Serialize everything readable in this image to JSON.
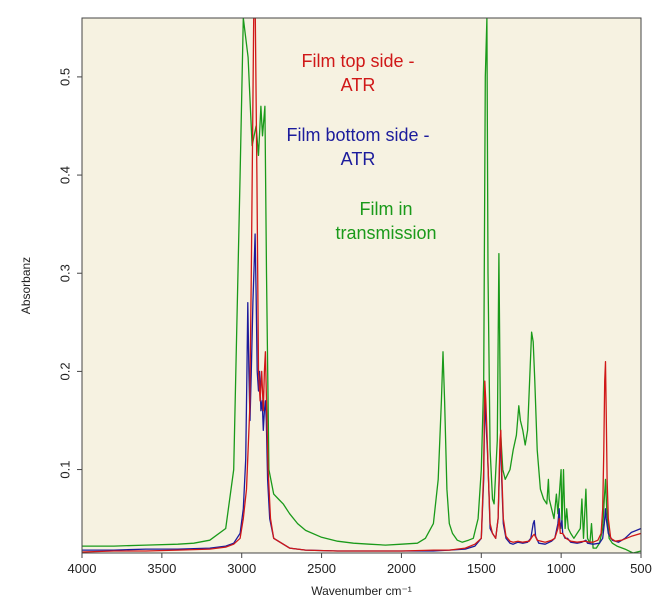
{
  "chart_data": {
    "type": "line",
    "title": "",
    "xlabel": "Wavenumber cm⁻¹",
    "ylabel": "Absorbanz",
    "xlim": [
      4000,
      500
    ],
    "ylim": [
      0.015,
      0.56
    ],
    "x_reversed": true,
    "grid": false,
    "x_ticks": [
      {
        "value": 4000,
        "label": "4000"
      },
      {
        "value": 3500,
        "label": "3500"
      },
      {
        "value": 3000,
        "label": "3000"
      },
      {
        "value": 2500,
        "label": "2500"
      },
      {
        "value": 2000,
        "label": "2000"
      },
      {
        "value": 1500,
        "label": "1500"
      },
      {
        "value": 1000,
        "label": "1000"
      },
      {
        "value": 500,
        "label": "500"
      }
    ],
    "y_ticks": [
      {
        "value": 0.1,
        "label": "0.1"
      },
      {
        "value": 0.2,
        "label": "0.2"
      },
      {
        "value": 0.3,
        "label": "0.3"
      },
      {
        "value": 0.4,
        "label": "0.4"
      },
      {
        "value": 0.5,
        "label": "0.5"
      }
    ],
    "plot_background": "#f6f2e1",
    "legend_position": "top-center",
    "series": [
      {
        "name": "Film in transmission",
        "legend_lines": [
          "Film in",
          "transmission"
        ],
        "color": "#1a9a1a",
        "points": [
          [
            4000,
            0.022
          ],
          [
            3800,
            0.022
          ],
          [
            3600,
            0.023
          ],
          [
            3400,
            0.024
          ],
          [
            3300,
            0.025
          ],
          [
            3200,
            0.028
          ],
          [
            3100,
            0.04
          ],
          [
            3050,
            0.1
          ],
          [
            3010,
            0.4
          ],
          [
            2990,
            0.56
          ],
          [
            2960,
            0.52
          ],
          [
            2935,
            0.43
          ],
          [
            2910,
            0.45
          ],
          [
            2895,
            0.42
          ],
          [
            2880,
            0.47
          ],
          [
            2870,
            0.44
          ],
          [
            2855,
            0.47
          ],
          [
            2845,
            0.3
          ],
          [
            2830,
            0.1
          ],
          [
            2800,
            0.075
          ],
          [
            2770,
            0.07
          ],
          [
            2740,
            0.065
          ],
          [
            2700,
            0.055
          ],
          [
            2650,
            0.045
          ],
          [
            2600,
            0.038
          ],
          [
            2500,
            0.031
          ],
          [
            2400,
            0.027
          ],
          [
            2300,
            0.025
          ],
          [
            2200,
            0.024
          ],
          [
            2100,
            0.023
          ],
          [
            2000,
            0.024
          ],
          [
            1900,
            0.025
          ],
          [
            1850,
            0.03
          ],
          [
            1800,
            0.045
          ],
          [
            1770,
            0.09
          ],
          [
            1750,
            0.17
          ],
          [
            1740,
            0.22
          ],
          [
            1730,
            0.17
          ],
          [
            1715,
            0.08
          ],
          [
            1700,
            0.045
          ],
          [
            1680,
            0.035
          ],
          [
            1650,
            0.028
          ],
          [
            1620,
            0.026
          ],
          [
            1580,
            0.028
          ],
          [
            1550,
            0.03
          ],
          [
            1520,
            0.05
          ],
          [
            1500,
            0.1
          ],
          [
            1485,
            0.19
          ],
          [
            1475,
            0.5
          ],
          [
            1465,
            0.56
          ],
          [
            1458,
            0.3
          ],
          [
            1445,
            0.12
          ],
          [
            1430,
            0.07
          ],
          [
            1420,
            0.065
          ],
          [
            1400,
            0.13
          ],
          [
            1390,
            0.32
          ],
          [
            1380,
            0.14
          ],
          [
            1365,
            0.1
          ],
          [
            1350,
            0.09
          ],
          [
            1320,
            0.1
          ],
          [
            1300,
            0.12
          ],
          [
            1280,
            0.135
          ],
          [
            1265,
            0.165
          ],
          [
            1255,
            0.15
          ],
          [
            1240,
            0.14
          ],
          [
            1225,
            0.125
          ],
          [
            1210,
            0.14
          ],
          [
            1195,
            0.2
          ],
          [
            1185,
            0.24
          ],
          [
            1175,
            0.23
          ],
          [
            1165,
            0.19
          ],
          [
            1150,
            0.12
          ],
          [
            1130,
            0.08
          ],
          [
            1110,
            0.07
          ],
          [
            1090,
            0.065
          ],
          [
            1080,
            0.09
          ],
          [
            1075,
            0.07
          ],
          [
            1060,
            0.06
          ],
          [
            1045,
            0.05
          ],
          [
            1030,
            0.075
          ],
          [
            1020,
            0.055
          ],
          [
            1000,
            0.1
          ],
          [
            995,
            0.04
          ],
          [
            985,
            0.1
          ],
          [
            975,
            0.04
          ],
          [
            965,
            0.06
          ],
          [
            955,
            0.04
          ],
          [
            940,
            0.035
          ],
          [
            920,
            0.03
          ],
          [
            900,
            0.035
          ],
          [
            880,
            0.04
          ],
          [
            870,
            0.07
          ],
          [
            860,
            0.03
          ],
          [
            845,
            0.08
          ],
          [
            835,
            0.03
          ],
          [
            820,
            0.025
          ],
          [
            810,
            0.045
          ],
          [
            800,
            0.02
          ],
          [
            780,
            0.02
          ],
          [
            760,
            0.025
          ],
          [
            740,
            0.04
          ],
          [
            730,
            0.07
          ],
          [
            722,
            0.09
          ],
          [
            715,
            0.06
          ],
          [
            700,
            0.03
          ],
          [
            680,
            0.025
          ],
          [
            650,
            0.022
          ],
          [
            600,
            0.019
          ],
          [
            550,
            0.015
          ],
          [
            500,
            0.017
          ]
        ]
      },
      {
        "name": "Film bottom side - ATR",
        "legend_lines": [
          "Film bottom side -",
          "ATR"
        ],
        "color": "#1c1c9c",
        "points": [
          [
            4000,
            0.018
          ],
          [
            3800,
            0.018
          ],
          [
            3600,
            0.019
          ],
          [
            3400,
            0.019
          ],
          [
            3200,
            0.02
          ],
          [
            3100,
            0.022
          ],
          [
            3050,
            0.025
          ],
          [
            3010,
            0.035
          ],
          [
            2990,
            0.06
          ],
          [
            2975,
            0.11
          ],
          [
            2968,
            0.19
          ],
          [
            2962,
            0.27
          ],
          [
            2955,
            0.2
          ],
          [
            2948,
            0.15
          ],
          [
            2940,
            0.2
          ],
          [
            2930,
            0.27
          ],
          [
            2922,
            0.31
          ],
          [
            2916,
            0.34
          ],
          [
            2910,
            0.28
          ],
          [
            2903,
            0.2
          ],
          [
            2895,
            0.18
          ],
          [
            2888,
            0.2
          ],
          [
            2880,
            0.16
          ],
          [
            2872,
            0.17
          ],
          [
            2865,
            0.14
          ],
          [
            2858,
            0.16
          ],
          [
            2852,
            0.17
          ],
          [
            2846,
            0.15
          ],
          [
            2838,
            0.09
          ],
          [
            2825,
            0.05
          ],
          [
            2800,
            0.03
          ],
          [
            2700,
            0.02
          ],
          [
            2600,
            0.018
          ],
          [
            2400,
            0.017
          ],
          [
            2200,
            0.017
          ],
          [
            2000,
            0.017
          ],
          [
            1800,
            0.017
          ],
          [
            1700,
            0.018
          ],
          [
            1600,
            0.019
          ],
          [
            1540,
            0.022
          ],
          [
            1500,
            0.03
          ],
          [
            1485,
            0.09
          ],
          [
            1478,
            0.18
          ],
          [
            1472,
            0.15
          ],
          [
            1462,
            0.12
          ],
          [
            1455,
            0.09
          ],
          [
            1445,
            0.04
          ],
          [
            1430,
            0.035
          ],
          [
            1410,
            0.03
          ],
          [
            1395,
            0.05
          ],
          [
            1383,
            0.12
          ],
          [
            1378,
            0.13
          ],
          [
            1372,
            0.09
          ],
          [
            1362,
            0.045
          ],
          [
            1345,
            0.03
          ],
          [
            1320,
            0.025
          ],
          [
            1300,
            0.024
          ],
          [
            1270,
            0.026
          ],
          [
            1240,
            0.025
          ],
          [
            1210,
            0.026
          ],
          [
            1190,
            0.03
          ],
          [
            1175,
            0.045
          ],
          [
            1168,
            0.048
          ],
          [
            1160,
            0.032
          ],
          [
            1140,
            0.025
          ],
          [
            1100,
            0.024
          ],
          [
            1060,
            0.027
          ],
          [
            1040,
            0.03
          ],
          [
            1020,
            0.045
          ],
          [
            1012,
            0.06
          ],
          [
            1005,
            0.04
          ],
          [
            995,
            0.048
          ],
          [
            990,
            0.035
          ],
          [
            975,
            0.03
          ],
          [
            960,
            0.03
          ],
          [
            940,
            0.026
          ],
          [
            900,
            0.025
          ],
          [
            870,
            0.026
          ],
          [
            845,
            0.028
          ],
          [
            835,
            0.025
          ],
          [
            800,
            0.024
          ],
          [
            760,
            0.025
          ],
          [
            740,
            0.03
          ],
          [
            730,
            0.045
          ],
          [
            722,
            0.06
          ],
          [
            718,
            0.05
          ],
          [
            705,
            0.035
          ],
          [
            680,
            0.028
          ],
          [
            640,
            0.026
          ],
          [
            600,
            0.03
          ],
          [
            560,
            0.036
          ],
          [
            500,
            0.04
          ]
        ]
      },
      {
        "name": "Film top side - ATR",
        "legend_lines": [
          "Film top side -",
          "ATR"
        ],
        "color": "#d01818",
        "points": [
          [
            4000,
            0.016
          ],
          [
            3800,
            0.017
          ],
          [
            3600,
            0.017
          ],
          [
            3400,
            0.018
          ],
          [
            3200,
            0.019
          ],
          [
            3100,
            0.021
          ],
          [
            3050,
            0.024
          ],
          [
            3010,
            0.03
          ],
          [
            2990,
            0.05
          ],
          [
            2970,
            0.08
          ],
          [
            2950,
            0.16
          ],
          [
            2940,
            0.3
          ],
          [
            2932,
            0.44
          ],
          [
            2925,
            0.56
          ],
          [
            2915,
            0.56
          ],
          [
            2905,
            0.4
          ],
          [
            2895,
            0.2
          ],
          [
            2885,
            0.17
          ],
          [
            2875,
            0.2
          ],
          [
            2865,
            0.16
          ],
          [
            2858,
            0.2
          ],
          [
            2852,
            0.22
          ],
          [
            2845,
            0.17
          ],
          [
            2835,
            0.1
          ],
          [
            2820,
            0.05
          ],
          [
            2800,
            0.03
          ],
          [
            2700,
            0.02
          ],
          [
            2600,
            0.018
          ],
          [
            2400,
            0.017
          ],
          [
            2200,
            0.017
          ],
          [
            2000,
            0.017
          ],
          [
            1800,
            0.018
          ],
          [
            1700,
            0.018
          ],
          [
            1600,
            0.02
          ],
          [
            1540,
            0.024
          ],
          [
            1500,
            0.03
          ],
          [
            1485,
            0.1
          ],
          [
            1478,
            0.19
          ],
          [
            1472,
            0.17
          ],
          [
            1465,
            0.14
          ],
          [
            1455,
            0.09
          ],
          [
            1445,
            0.045
          ],
          [
            1430,
            0.035
          ],
          [
            1410,
            0.03
          ],
          [
            1395,
            0.05
          ],
          [
            1383,
            0.13
          ],
          [
            1378,
            0.14
          ],
          [
            1372,
            0.1
          ],
          [
            1362,
            0.05
          ],
          [
            1345,
            0.032
          ],
          [
            1320,
            0.027
          ],
          [
            1300,
            0.026
          ],
          [
            1270,
            0.027
          ],
          [
            1240,
            0.026
          ],
          [
            1200,
            0.027
          ],
          [
            1175,
            0.033
          ],
          [
            1168,
            0.034
          ],
          [
            1150,
            0.028
          ],
          [
            1100,
            0.026
          ],
          [
            1060,
            0.028
          ],
          [
            1040,
            0.03
          ],
          [
            1020,
            0.04
          ],
          [
            1012,
            0.05
          ],
          [
            1005,
            0.035
          ],
          [
            990,
            0.035
          ],
          [
            970,
            0.03
          ],
          [
            940,
            0.027
          ],
          [
            900,
            0.026
          ],
          [
            850,
            0.027
          ],
          [
            820,
            0.026
          ],
          [
            800,
            0.026
          ],
          [
            770,
            0.028
          ],
          [
            750,
            0.035
          ],
          [
            740,
            0.06
          ],
          [
            733,
            0.12
          ],
          [
            727,
            0.19
          ],
          [
            722,
            0.21
          ],
          [
            718,
            0.16
          ],
          [
            712,
            0.09
          ],
          [
            705,
            0.05
          ],
          [
            690,
            0.03
          ],
          [
            660,
            0.027
          ],
          [
            620,
            0.028
          ],
          [
            560,
            0.032
          ],
          [
            500,
            0.035
          ]
        ]
      }
    ]
  }
}
